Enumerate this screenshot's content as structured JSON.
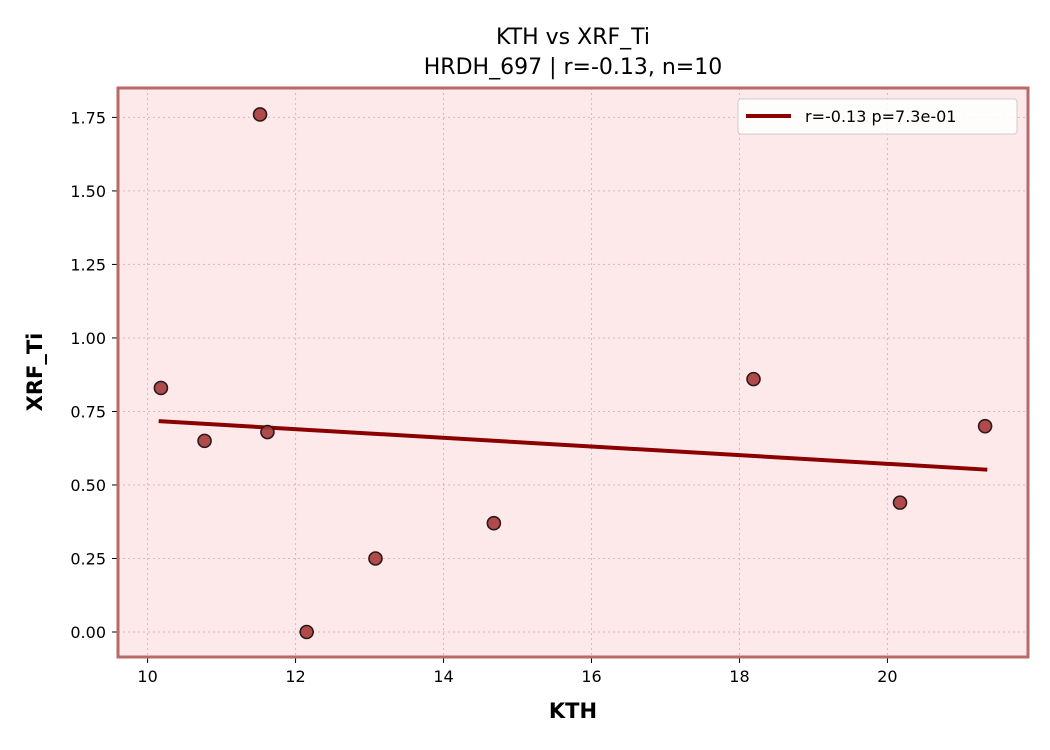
{
  "chart_data": {
    "type": "scatter",
    "title": "KTH vs XRF_Ti",
    "subtitle": "HRDH_697 | r=-0.13, n=10",
    "xlabel": "KTH",
    "ylabel": "XRF_Ti",
    "xlim": [
      9.6,
      21.9
    ],
    "ylim": [
      -0.085,
      1.85
    ],
    "xticks": [
      10,
      12,
      14,
      16,
      18,
      20
    ],
    "xtick_labels": [
      "10",
      "12",
      "14",
      "16",
      "18",
      "20"
    ],
    "yticks": [
      0.0,
      0.25,
      0.5,
      0.75,
      1.0,
      1.25,
      1.5,
      1.75
    ],
    "ytick_labels": [
      "0.00",
      "0.25",
      "0.50",
      "0.75",
      "1.00",
      "1.25",
      "1.50",
      "1.75"
    ],
    "grid": true,
    "points": [
      {
        "x": 10.18,
        "y": 0.83
      },
      {
        "x": 10.77,
        "y": 0.65
      },
      {
        "x": 11.52,
        "y": 1.76
      },
      {
        "x": 11.62,
        "y": 0.68
      },
      {
        "x": 12.15,
        "y": 0.0
      },
      {
        "x": 13.08,
        "y": 0.25
      },
      {
        "x": 14.68,
        "y": 0.37
      },
      {
        "x": 18.19,
        "y": 0.86
      },
      {
        "x": 20.17,
        "y": 0.44
      },
      {
        "x": 21.32,
        "y": 0.7
      }
    ],
    "fit_line": {
      "label": "r=-0.13  p=7.3e-01",
      "x": [
        10.15,
        21.35
      ],
      "y": [
        0.717,
        0.552
      ]
    },
    "legend_position": "top-right",
    "colors": {
      "background": "#fde8ea",
      "frame": "#b86a6a",
      "marker_fill": "#a83838",
      "marker_edge": "#2a1a1a",
      "fit_line": "#8b0000",
      "grid": "#d8b8bc"
    }
  }
}
